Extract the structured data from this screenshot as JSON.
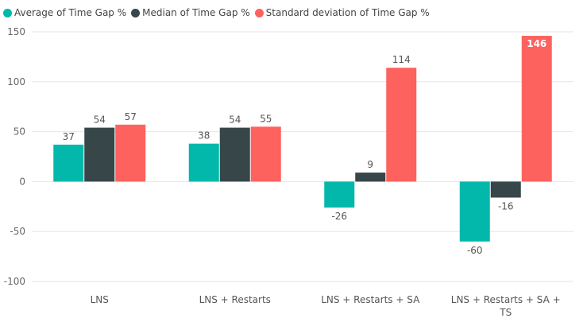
{
  "chart_data": {
    "type": "bar",
    "title": "",
    "xlabel": "",
    "ylabel": "",
    "categories": [
      "LNS",
      "LNS + Restarts",
      "LNS + Restarts + SA",
      "LNS + Restarts + SA + TS"
    ],
    "category_lines": [
      [
        "LNS"
      ],
      [
        "LNS + Restarts"
      ],
      [
        "LNS + Restarts + SA"
      ],
      [
        "LNS + Restarts + SA +",
        "TS"
      ]
    ],
    "series": [
      {
        "name": "Average of Time Gap %",
        "color": "#01B8AA",
        "values": [
          37,
          38,
          -26,
          -60
        ]
      },
      {
        "name": "Median of Time Gap %",
        "color": "#374649",
        "values": [
          54,
          54,
          9,
          -16
        ]
      },
      {
        "name": "Standard deviation of Time Gap %",
        "color": "#FD625E",
        "values": [
          57,
          55,
          114,
          146
        ]
      }
    ],
    "ylim": [
      -100,
      150
    ],
    "yticks": [
      150,
      100,
      50,
      0,
      -50,
      -100
    ],
    "grid": true,
    "legend_position": "top-left",
    "highlighted_label_value": "146"
  }
}
